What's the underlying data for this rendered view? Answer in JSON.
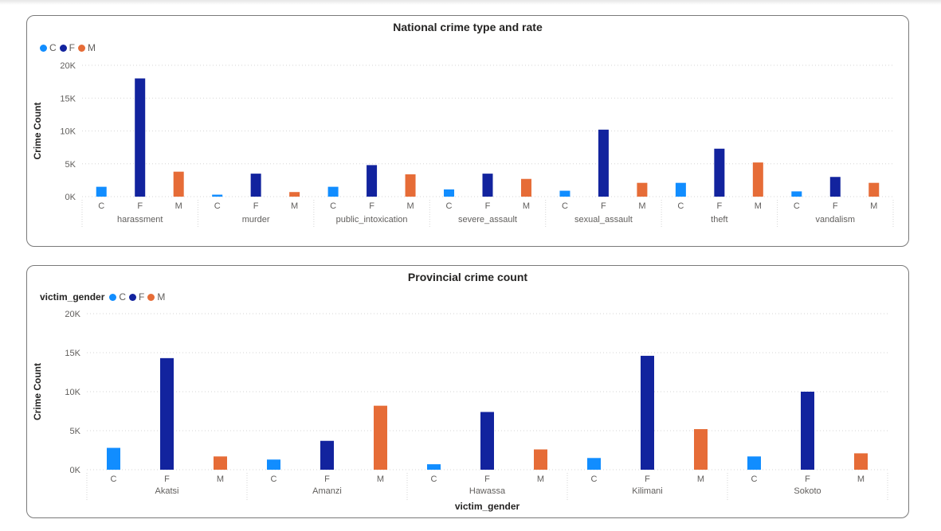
{
  "palette": {
    "C": "#118dff",
    "F": "#12239e",
    "M": "#e66c37"
  },
  "chart_data": [
    {
      "type": "bar",
      "title": "National crime type and rate",
      "ylabel": "Crime Count",
      "xlabel": "",
      "legend_title": "",
      "legend": [
        "C",
        "F",
        "M"
      ],
      "ylim": [
        0,
        20000
      ],
      "yticks": [
        0,
        5000,
        10000,
        15000,
        20000
      ],
      "ytick_labels": [
        "0K",
        "5K",
        "10K",
        "15K",
        "20K"
      ],
      "grid": true,
      "groups": [
        "harassment",
        "murder",
        "public_intoxication",
        "severe_assault",
        "sexual_assault",
        "theft",
        "vandalism"
      ],
      "subcategories": [
        "C",
        "F",
        "M"
      ],
      "values": [
        [
          1500,
          18000,
          3800
        ],
        [
          300,
          3500,
          700
        ],
        [
          1500,
          4800,
          3400
        ],
        [
          1100,
          3500,
          2700
        ],
        [
          900,
          10200,
          2100
        ],
        [
          2100,
          7300,
          5200
        ],
        [
          800,
          3000,
          2100
        ]
      ]
    },
    {
      "type": "bar",
      "title": "Provincial crime count",
      "ylabel": "Crime Count",
      "xlabel": "victim_gender",
      "legend_title": "victim_gender",
      "legend": [
        "C",
        "F",
        "M"
      ],
      "ylim": [
        0,
        20000
      ],
      "yticks": [
        0,
        5000,
        10000,
        15000,
        20000
      ],
      "ytick_labels": [
        "0K",
        "5K",
        "10K",
        "15K",
        "20K"
      ],
      "grid": true,
      "groups": [
        "Akatsi",
        "Amanzi",
        "Hawassa",
        "Kilimani",
        "Sokoto"
      ],
      "subcategories": [
        "C",
        "F",
        "M"
      ],
      "values": [
        [
          2800,
          14300,
          1700
        ],
        [
          1300,
          3700,
          8200
        ],
        [
          700,
          7400,
          2600
        ],
        [
          1500,
          14600,
          5200
        ],
        [
          1700,
          10000,
          2100
        ]
      ]
    }
  ]
}
